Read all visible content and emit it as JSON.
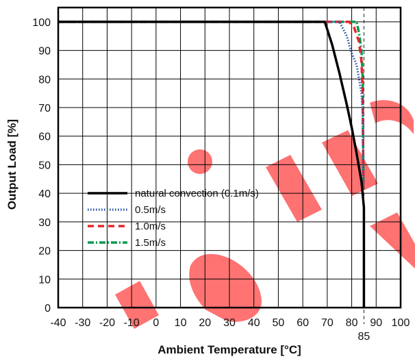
{
  "chart_data": {
    "type": "line",
    "title": "",
    "xlabel": "Ambient Temperature [°C]",
    "ylabel": "Output Load [%]",
    "xlim": [
      -40,
      100
    ],
    "ylim": [
      0,
      105
    ],
    "grid": true,
    "x_ticks": [
      -40,
      -30,
      -20,
      -10,
      0,
      10,
      20,
      30,
      40,
      50,
      60,
      70,
      80,
      90,
      100
    ],
    "y_ticks": [
      0,
      10,
      20,
      30,
      40,
      50,
      60,
      70,
      80,
      90,
      100
    ],
    "reference_line": {
      "x": 85,
      "label": "85",
      "style": "dashed"
    },
    "legend_position": "lower-left",
    "series": [
      {
        "name": "natural convection (0.1m/s)",
        "color": "#000000",
        "style": "solid",
        "x": [
          -40,
          69,
          72,
          75,
          78,
          80,
          82,
          84,
          85,
          85
        ],
        "y": [
          100,
          100,
          92,
          82,
          71,
          63,
          54,
          44,
          35,
          0
        ]
      },
      {
        "name": "0.5m/s",
        "color": "#2a56a8",
        "style": "dotted",
        "x": [
          -40,
          75,
          78,
          80,
          82,
          83,
          84,
          84.5,
          84.8
        ],
        "y": [
          100,
          100,
          95,
          89,
          85,
          80,
          75,
          68,
          42
        ]
      },
      {
        "name": "1.0m/s",
        "color": "#e8232a",
        "style": "dashed",
        "x": [
          -40,
          79,
          81,
          83,
          84,
          84.5,
          84.8
        ],
        "y": [
          100,
          100,
          98,
          93,
          86,
          75,
          42
        ]
      },
      {
        "name": "1.5m/s",
        "color": "#009a4e",
        "style": "dashdot",
        "x": [
          -40,
          82,
          83,
          84,
          84.5,
          84.8
        ],
        "y": [
          100,
          100,
          96,
          90,
          80,
          42
        ]
      }
    ]
  },
  "watermark_color": "#ff0000"
}
